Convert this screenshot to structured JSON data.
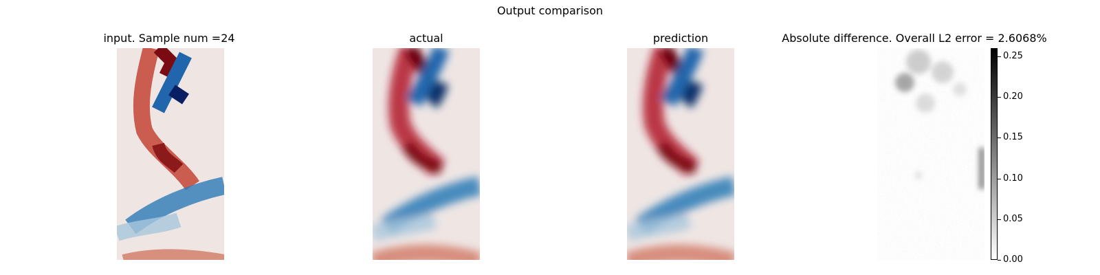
{
  "chart_data": {
    "title": "Output comparison",
    "type": "heatmap",
    "panels": [
      {
        "id": "input",
        "title": "input. Sample num =24",
        "colormap": "diverging-red-blue",
        "resolution": "coarse"
      },
      {
        "id": "actual",
        "title": "actual",
        "colormap": "diverging-red-blue",
        "resolution": "fine"
      },
      {
        "id": "prediction",
        "title": "prediction",
        "colormap": "diverging-red-blue",
        "resolution": "fine"
      },
      {
        "id": "difference",
        "title": "Absolute difference. Overall L2 error = 2.6068%",
        "colormap": "grayscale",
        "resolution": "fine"
      }
    ],
    "colorbar": {
      "range": [
        0,
        0.26
      ],
      "ticks": [
        "0.00",
        "0.05",
        "0.10",
        "0.15",
        "0.20",
        "0.25"
      ]
    },
    "axes_visible": false
  }
}
